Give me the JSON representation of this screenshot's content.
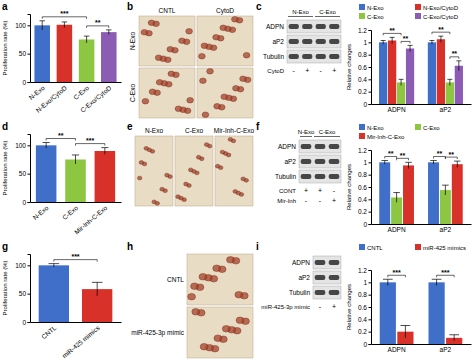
{
  "panel_labels": [
    "a",
    "b",
    "c",
    "d",
    "e",
    "f",
    "g",
    "h",
    "i"
  ],
  "chart_data": [
    {
      "type": "bar",
      "y_label": "Proliferation rate (%)",
      "categories": [
        "N-Exo",
        "N-Exo/CytoD",
        "C-Exo",
        "C-Exo/CytoD"
      ],
      "values": [
        100,
        101,
        75,
        88
      ],
      "errors": [
        8,
        5,
        6,
        4
      ],
      "colors": [
        "#3f6fc8",
        "#d8312a",
        "#8dc641",
        "#8c5bb3"
      ],
      "ylim": [
        0,
        120
      ],
      "yticks": [
        0,
        50,
        100
      ],
      "annotations": [
        {
          "text": "***",
          "from": 0,
          "to": 2
        },
        {
          "text": "**",
          "from": 2,
          "to": 3
        }
      ]
    },
    {
      "type": "bar",
      "y_label": "Relative changes",
      "categories": [
        "ADPN",
        "aP2"
      ],
      "series": [
        {
          "name": "N-Exo",
          "color": "#3f6fc8",
          "values": [
            1,
            1
          ],
          "errors": [
            0.03,
            0.03
          ]
        },
        {
          "name": "N-Exo/CytoD",
          "color": "#d8312a",
          "values": [
            1.03,
            1.05
          ],
          "errors": [
            0.05,
            0.05
          ]
        },
        {
          "name": "C-Exo",
          "color": "#8dc641",
          "values": [
            0.35,
            0.35
          ],
          "errors": [
            0.05,
            0.05
          ]
        },
        {
          "name": "C-Exo/CytoD",
          "color": "#8c5bb3",
          "values": [
            0.9,
            0.62
          ],
          "errors": [
            0.05,
            0.08
          ]
        }
      ],
      "ylim": [
        0,
        1.2
      ],
      "yticks": [
        0,
        0.2,
        0.4,
        0.6,
        0.8,
        1,
        1.2
      ],
      "legend": "top",
      "annotations": [
        {
          "text": "**",
          "category": 0,
          "from": 0,
          "to": 2
        },
        {
          "text": "**",
          "category": 0,
          "from": 2,
          "to": 3
        },
        {
          "text": "**",
          "category": 1,
          "from": 0,
          "to": 2
        },
        {
          "text": "**",
          "category": 1,
          "from": 2,
          "to": 3
        }
      ]
    },
    {
      "type": "bar",
      "y_label": "Proliferation rate (%)",
      "categories": [
        "N-Exo",
        "C-Exo",
        "Mir-Inh-C-Exo"
      ],
      "values": [
        100,
        75,
        90
      ],
      "errors": [
        5,
        8,
        6
      ],
      "colors": [
        "#3f6fc8",
        "#8dc641",
        "#d8312a"
      ],
      "ylim": [
        0,
        120
      ],
      "yticks": [
        0,
        50,
        100
      ],
      "annotations": [
        {
          "text": "**",
          "from": 0,
          "to": 1
        },
        {
          "text": "***",
          "from": 1,
          "to": 2
        }
      ]
    },
    {
      "type": "bar",
      "y_label": "Relative changes",
      "categories": [
        "ADPN",
        "aP2"
      ],
      "series": [
        {
          "name": "N-Exo",
          "color": "#3f6fc8",
          "values": [
            1,
            1
          ],
          "errors": [
            0.03,
            0.03
          ]
        },
        {
          "name": "C-Exo",
          "color": "#8dc641",
          "values": [
            0.43,
            0.55
          ],
          "errors": [
            0.08,
            0.08
          ]
        },
        {
          "name": "Mir-Inh-C-Exo",
          "color": "#d8312a",
          "values": [
            0.95,
            0.97
          ],
          "errors": [
            0.05,
            0.05
          ]
        }
      ],
      "ylim": [
        0,
        1.2
      ],
      "yticks": [
        0,
        0.2,
        0.4,
        0.6,
        0.8,
        1,
        1.2
      ],
      "legend": "top",
      "annotations": [
        {
          "text": "**",
          "category": 0,
          "from": 0,
          "to": 1
        },
        {
          "text": "**",
          "category": 0,
          "from": 1,
          "to": 2
        },
        {
          "text": "**",
          "category": 1,
          "from": 0,
          "to": 1
        },
        {
          "text": "**",
          "category": 1,
          "from": 1,
          "to": 2
        }
      ]
    },
    {
      "type": "bar",
      "y_label": "Proliferation rate (%)",
      "categories": [
        "CNTL",
        "miR-425 mimics"
      ],
      "values": [
        100,
        58
      ],
      "errors": [
        3,
        12
      ],
      "colors": [
        "#3f6fc8",
        "#d8312a"
      ],
      "ylim": [
        0,
        120
      ],
      "yticks": [
        0,
        50,
        100
      ],
      "annotations": [
        {
          "text": "***",
          "from": 0,
          "to": 1
        }
      ]
    },
    {
      "type": "bar",
      "y_label": "Relative changes",
      "categories": [
        "ADPN",
        "aP2"
      ],
      "series": [
        {
          "name": "CNTL",
          "color": "#3f6fc8",
          "values": [
            1,
            1
          ],
          "errors": [
            0.05,
            0.05
          ]
        },
        {
          "name": "miR-425 mimics",
          "color": "#d8312a",
          "values": [
            0.2,
            0.1
          ],
          "errors": [
            0.1,
            0.05
          ]
        }
      ],
      "ylim": [
        0,
        1.2
      ],
      "yticks": [
        0,
        0.2,
        0.4,
        0.6,
        0.8,
        1,
        1.2
      ],
      "legend": "top",
      "annotations": [
        {
          "text": "***",
          "category": 0,
          "from": 0,
          "to": 1
        },
        {
          "text": "***",
          "category": 1,
          "from": 0,
          "to": 1
        }
      ]
    }
  ],
  "images": [
    {
      "columns": [
        "CNTL",
        "CytoD"
      ],
      "rows": [
        "N-Exo",
        "C-Exo"
      ]
    },
    {
      "columns": [
        "N-Exo",
        "C-Exo",
        "Mir-Inh-C-Exo"
      ],
      "rows": []
    },
    {
      "columns": [],
      "rows": [
        "CNTL",
        "miR-425-3p mimic"
      ]
    }
  ],
  "blots": [
    {
      "columns": [
        {
          "text": "N-Exo",
          "span": 2
        },
        {
          "text": "C-Exo",
          "span": 2
        }
      ],
      "rows": [
        "ADPN",
        "aP2",
        "Tubulin"
      ],
      "treatments": [
        {
          "name": "CytoD",
          "marks": [
            "-",
            "+",
            "-",
            "+"
          ]
        }
      ]
    },
    {
      "columns": [
        {
          "text": "N-Exo",
          "span": 1
        },
        {
          "text": "C-Exo",
          "span": 2
        }
      ],
      "rows": [
        "ADPN",
        "aP2",
        "Tubulin"
      ],
      "treatments": [
        {
          "name": "CONT",
          "marks": [
            "+",
            "+",
            "-"
          ]
        },
        {
          "name": "Mir-Inh",
          "marks": [
            "-",
            "-",
            "+"
          ]
        }
      ]
    },
    {
      "columns": [],
      "rows": [
        "ADPN",
        "aP2",
        "Tubulin"
      ],
      "treatments": [
        {
          "name": "miR-425-3p mimic",
          "marks": [
            "-",
            "+"
          ]
        }
      ]
    }
  ]
}
